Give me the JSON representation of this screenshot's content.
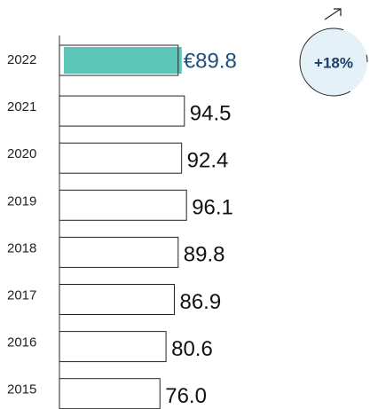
{
  "chart_data": {
    "type": "hbar",
    "categories": [
      "2022",
      "2021",
      "2020",
      "2019",
      "2018",
      "2017",
      "2016",
      "2015"
    ],
    "values": [
      89.8,
      94.5,
      92.4,
      96.1,
      89.8,
      86.9,
      80.6,
      76.0
    ],
    "value_labels": [
      "€89.8",
      "94.5",
      "92.4",
      "96.1",
      "89.8",
      "86.9",
      "80.6",
      "76.0"
    ],
    "highlight_color": "#5cc7b9",
    "color": "#ffffff",
    "xlim": [
      0,
      100
    ],
    "annotation": "+18%"
  }
}
